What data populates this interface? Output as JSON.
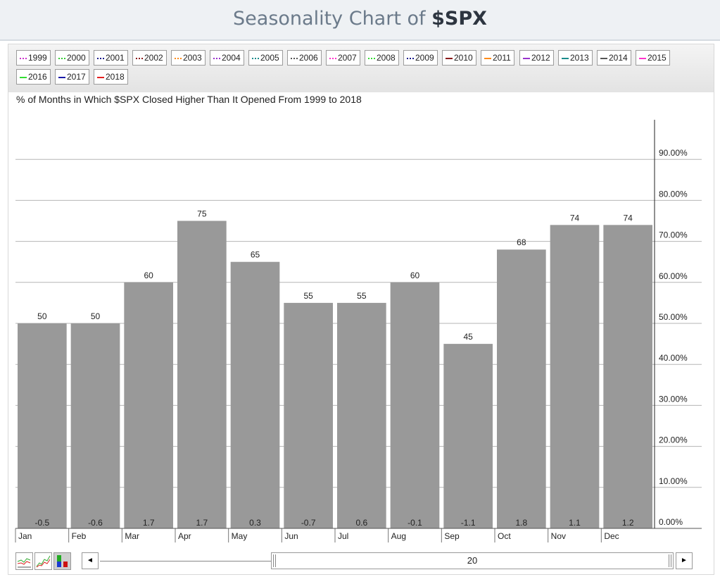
{
  "page": {
    "title_prefix": "Seasonality Chart of ",
    "title_symbol": "$SPX"
  },
  "legend": [
    {
      "label": "1999",
      "color": "#cc33cc",
      "style": "dot"
    },
    {
      "label": "2000",
      "color": "#33cc33",
      "style": "dot"
    },
    {
      "label": "2001",
      "color": "#1a1a8c",
      "style": "dot"
    },
    {
      "label": "2002",
      "color": "#8b1a1a",
      "style": "dot"
    },
    {
      "label": "2003",
      "color": "#ff8c1a",
      "style": "dot"
    },
    {
      "label": "2004",
      "color": "#9933cc",
      "style": "dot"
    },
    {
      "label": "2005",
      "color": "#1a8c8c",
      "style": "dot"
    },
    {
      "label": "2006",
      "color": "#555555",
      "style": "dot"
    },
    {
      "label": "2007",
      "color": "#ff33cc",
      "style": "dot"
    },
    {
      "label": "2008",
      "color": "#33dd33",
      "style": "dot"
    },
    {
      "label": "2009",
      "color": "#1a1a8c",
      "style": "dot"
    },
    {
      "label": "2010",
      "color": "#8b1a1a",
      "style": "solid"
    },
    {
      "label": "2011",
      "color": "#ff8c1a",
      "style": "solid"
    },
    {
      "label": "2012",
      "color": "#9933cc",
      "style": "solid"
    },
    {
      "label": "2013",
      "color": "#1a8c8c",
      "style": "solid"
    },
    {
      "label": "2014",
      "color": "#555555",
      "style": "solid"
    },
    {
      "label": "2015",
      "color": "#ff33cc",
      "style": "solid"
    },
    {
      "label": "2016",
      "color": "#33dd33",
      "style": "solid"
    },
    {
      "label": "2017",
      "color": "#1a1aa8",
      "style": "solid"
    },
    {
      "label": "2018",
      "color": "#e62020",
      "style": "solid"
    }
  ],
  "chart_data": {
    "type": "bar",
    "title": "% of Months in Which $SPX Closed Higher Than It Opened From 1999 to 2018",
    "categories": [
      "Jan",
      "Feb",
      "Mar",
      "Apr",
      "May",
      "Jun",
      "Jul",
      "Aug",
      "Sep",
      "Oct",
      "Nov",
      "Dec"
    ],
    "values": [
      50,
      50,
      60,
      75,
      65,
      55,
      55,
      60,
      45,
      68,
      74,
      74
    ],
    "value_labels": [
      "50",
      "50",
      "60",
      "75",
      "65",
      "55",
      "55",
      "60",
      "45",
      "68",
      "74",
      "74"
    ],
    "avg_change_labels": [
      "-0.5",
      "-0.6",
      "1.7",
      "1.7",
      "0.3",
      "-0.7",
      "0.6",
      "-0.1",
      "-1.1",
      "1.8",
      "1.1",
      "1.2"
    ],
    "y_ticks": [
      0,
      10,
      20,
      30,
      40,
      50,
      60,
      70,
      80,
      90
    ],
    "y_tick_labels": [
      "0.00%",
      "10.00%",
      "20.00%",
      "30.00%",
      "40.00%",
      "50.00%",
      "60.00%",
      "70.00%",
      "80.00%",
      "90.00%"
    ],
    "ylim": [
      0,
      100
    ],
    "y_axis_side": "right",
    "grid": true,
    "bar_color": "#999999"
  },
  "controls": {
    "lookback_years": "20",
    "scroll_left_glyph": "◄",
    "scroll_right_glyph": "►"
  }
}
